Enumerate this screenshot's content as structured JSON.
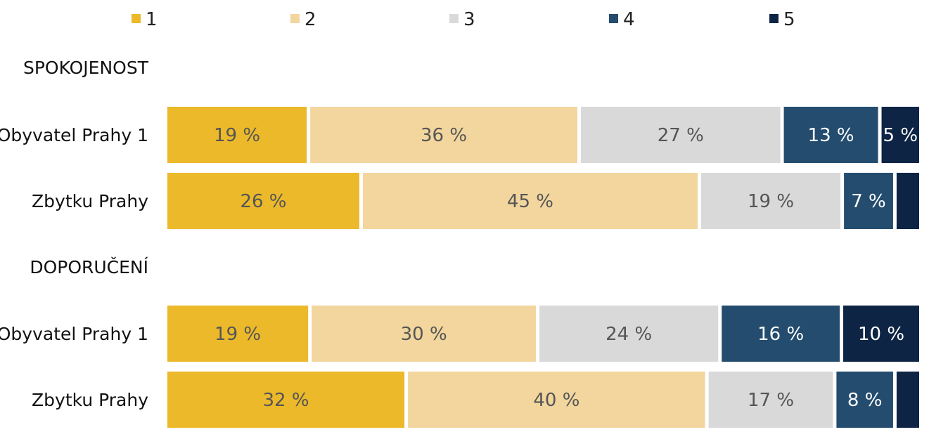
{
  "chart_data": {
    "type": "bar",
    "orientation": "horizontal",
    "stacked": "100%",
    "legend": {
      "placement": "top",
      "items": [
        {
          "label": "1",
          "color": "#EBB92A"
        },
        {
          "label": "2",
          "color": "#F2D69E"
        },
        {
          "label": "3",
          "color": "#D9D9D9"
        },
        {
          "label": "4",
          "color": "#244C6E"
        },
        {
          "label": "5",
          "color": "#0E2444"
        }
      ]
    },
    "groups": [
      {
        "label": "SPOKOJENOST",
        "rows": [
          {
            "category": "Obyvatel Prahy 1",
            "values": [
              19,
              36,
              27,
              13,
              5
            ],
            "labels": [
              "19 %",
              "36 %",
              "27 %",
              "13 %",
              "5 %"
            ]
          },
          {
            "category": "Zbytku Prahy",
            "values": [
              26,
              45,
              19,
              7,
              3
            ],
            "labels": [
              "26 %",
              "45 %",
              "19 %",
              "7 %",
              ""
            ]
          }
        ]
      },
      {
        "label": "DOPORUČENÍ",
        "rows": [
          {
            "category": "Obyvatel Prahy 1",
            "values": [
              19,
              30,
              24,
              16,
              10
            ],
            "labels": [
              "19 %",
              "30 %",
              "24 %",
              "16 %",
              "10 %"
            ]
          },
          {
            "category": "Zbytku Prahy",
            "values": [
              32,
              40,
              17,
              8,
              3
            ],
            "labels": [
              "32 %",
              "40 %",
              "17 %",
              "8 %",
              ""
            ]
          }
        ]
      }
    ],
    "label_colors": [
      "#555555",
      "#555555",
      "#555555",
      "#ffffff",
      "#ffffff"
    ],
    "grid": false
  }
}
